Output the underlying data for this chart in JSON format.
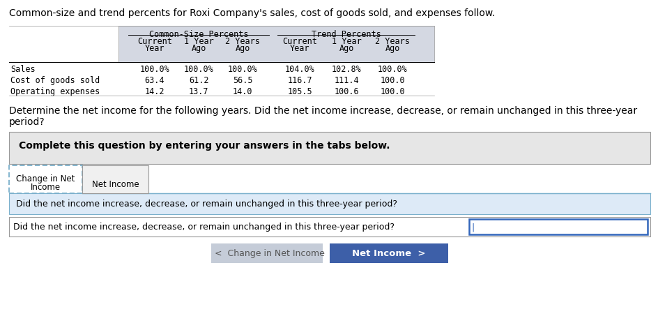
{
  "title": "Common-size and trend percents for Roxi Company's sales, cost of goods sold, and expenses follow.",
  "question_text1": "Determine the net income for the following years. Did the net income increase, decrease, or remain unchanged in this three-year",
  "question_text2": "period?",
  "complete_text": "Complete this question by entering your answers in the tabs below.",
  "tab1_line1": "Change in Net",
  "tab1_line2": "Income",
  "tab2_label": "Net Income",
  "section1_header": "Common-Size Percents",
  "section2_header": "Trend Percents",
  "row_labels": [
    "Sales",
    "Cost of goods sold",
    "Operating expenses"
  ],
  "table_data": [
    [
      "100.0%",
      "100.0%",
      "100.0%",
      "104.0%",
      "102.8%",
      "100.0%"
    ],
    [
      "63.4",
      "61.2",
      "56.5",
      "116.7",
      "111.4",
      "100.0"
    ],
    [
      "14.2",
      "13.7",
      "14.0",
      "105.5",
      "100.6",
      "100.0"
    ]
  ],
  "active_tab_text": "Did the net income increase, decrease, or remain unchanged in this three-year period?",
  "input_placeholder": "Did the net income increase, decrease, or remain unchanged in this three-year period?",
  "btn_left_label": "  <  Change in Net Income",
  "btn_right_label": "Net Income  >",
  "header_bg": "#d4d8e2",
  "gray_box_bg": "#e6e6e6",
  "active_tab_bg": "#ddeaf7",
  "btn_left_bg": "#c5ccd8",
  "btn_right_bg": "#3d5fa8",
  "btn_right_text": "#ffffff",
  "btn_left_text": "#555555",
  "border_color": "#999999",
  "blue_border": "#3366bb",
  "tab_line_color": "#7ab0cc"
}
